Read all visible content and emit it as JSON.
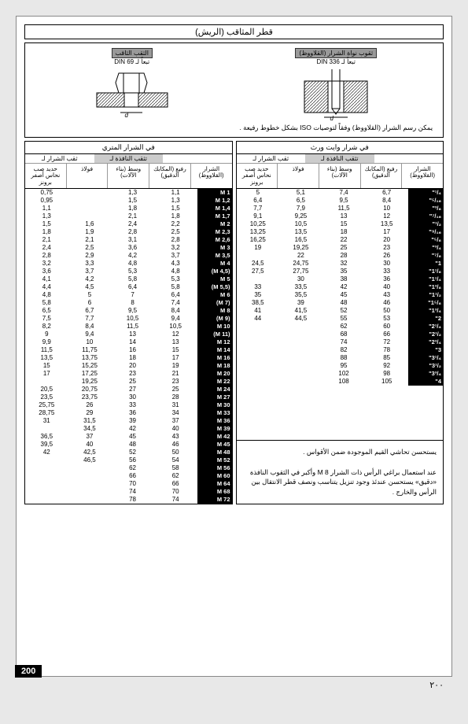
{
  "title": "قطر المثاقب (الريش)",
  "top": {
    "right_label": "ثقوب نواة الشرار (القلاووظ)",
    "right_din": "تبعاً لـ DIN 336",
    "left_label": "الثقب الثاقب",
    "left_din": "تبعاً لـ DIN 69",
    "note": "يمكن رسم الشرار (القلاووظ) وفقاً لتوصيات ISO بشكل خطوط رفيعة ."
  },
  "headers": {
    "left_title": "في الشرار المتري",
    "right_title": "في شرار وايت ورث",
    "group1": "تثقب النافذة لـ",
    "group2": "ثقب الشرار لـ",
    "col_tap": "الشرار (القلاووظ)",
    "col_fine": "رفيع (المكابك الدقيق)",
    "col_mid": "وسط (بناء الآلات)",
    "col_steel": "فولاذ",
    "col_brass": "حديد صب نحاس أصفر برونز"
  },
  "left_rows": [
    [
      "M 1",
      "1,1",
      "1,3",
      "",
      "0,75"
    ],
    [
      "M 1,2",
      "1,3",
      "1,5",
      "",
      "0,95"
    ],
    [
      "M 1,4",
      "1,5",
      "1,8",
      "",
      "1,1"
    ],
    [
      "M 1,7",
      "1,8",
      "2,1",
      "",
      "1,3"
    ],
    [
      "M 2",
      "2,2",
      "2,4",
      "1,6",
      "1,5"
    ],
    [
      "M 2,3",
      "2,5",
      "2,8",
      "1,9",
      "1,8"
    ],
    [
      "M 2,6",
      "2,8",
      "3,1",
      "2,1",
      "2,1"
    ],
    [
      "M 3",
      "3,2",
      "3,6",
      "2,5",
      "2,4"
    ],
    [
      "M 3,5",
      "3,7",
      "4,2",
      "2,9",
      "2,8"
    ],
    [
      "M 4",
      "4,3",
      "4,8",
      "3,3",
      "3,2"
    ],
    [
      "(M 4,5)",
      "4,8",
      "5,3",
      "3,7",
      "3,6"
    ],
    [
      "M 5",
      "5,3",
      "5,8",
      "4,2",
      "4,1"
    ],
    [
      "(M 5,5)",
      "5,8",
      "6,4",
      "4,5",
      "4,4"
    ],
    [
      "M 6",
      "6,4",
      "7",
      "5",
      "4,8"
    ],
    [
      "(M 7)",
      "7,4",
      "8",
      "6",
      "5,8"
    ],
    [
      "M 8",
      "8,4",
      "9,5",
      "6,7",
      "6,5"
    ],
    [
      "(M 9)",
      "9,4",
      "10,5",
      "7,7",
      "7,5"
    ],
    [
      "M 10",
      "10,5",
      "11,5",
      "8,4",
      "8,2"
    ],
    [
      "(M 11)",
      "12",
      "13",
      "9,4",
      "9"
    ],
    [
      "M 12",
      "13",
      "14",
      "10",
      "9,9"
    ],
    [
      "M 14",
      "15",
      "16",
      "11,75",
      "11,5"
    ],
    [
      "M 16",
      "17",
      "18",
      "13,75",
      "13,5"
    ],
    [
      "M 18",
      "19",
      "20",
      "15,25",
      "15"
    ],
    [
      "M 20",
      "21",
      "23",
      "17,25",
      "17"
    ],
    [
      "M 22",
      "23",
      "25",
      "19,25",
      ""
    ],
    [
      "M 24",
      "25",
      "27",
      "20,75",
      "20,5"
    ],
    [
      "M 27",
      "28",
      "30",
      "23,75",
      "23,5"
    ],
    [
      "M 30",
      "31",
      "33",
      "26",
      "25,75"
    ],
    [
      "M 33",
      "34",
      "36",
      "29",
      "28,75"
    ],
    [
      "M 36",
      "37",
      "39",
      "31,5",
      "31"
    ],
    [
      "M 39",
      "40",
      "42",
      "34,5",
      ""
    ],
    [
      "M 42",
      "43",
      "45",
      "37",
      "36,5"
    ],
    [
      "M 45",
      "46",
      "48",
      "40",
      "39,5"
    ],
    [
      "M 48",
      "50",
      "52",
      "42,5",
      "42"
    ],
    [
      "M 52",
      "54",
      "56",
      "46,5",
      ""
    ],
    [
      "M 56",
      "58",
      "62",
      "",
      ""
    ],
    [
      "M 60",
      "62",
      "66",
      "",
      ""
    ],
    [
      "M 64",
      "66",
      "70",
      "",
      ""
    ],
    [
      "M 68",
      "70",
      "74",
      "",
      ""
    ],
    [
      "M 72",
      "74",
      "78",
      "",
      ""
    ]
  ],
  "right_rows": [
    [
      "¹/₄\"",
      "6,7",
      "7,4",
      "5,1",
      "5"
    ],
    [
      "⁵/₁₆\"",
      "8,4",
      "9,5",
      "6,5",
      "6,4"
    ],
    [
      "³/₈\"",
      "10",
      "11,5",
      "7,9",
      "7,7"
    ],
    [
      "⁷/₁₆\"",
      "12",
      "13",
      "9,25",
      "9,1"
    ],
    [
      "¹/₂\"",
      "13,5",
      "15",
      "10,5",
      "10,25"
    ],
    [
      "⁹/₁₆\"",
      "17",
      "18",
      "13,5",
      "13,25"
    ],
    [
      "⁵/₈\"",
      "20",
      "22",
      "16,5",
      "16,25"
    ],
    [
      "³/₄\"",
      "23",
      "25",
      "19,25",
      "19"
    ],
    [
      "⁷/₈\"",
      "26",
      "28",
      "22",
      ""
    ],
    [
      "1\"",
      "30",
      "32",
      "24,75",
      "24,5"
    ],
    [
      "1¹/₈\"",
      "33",
      "35",
      "27,75",
      "27,5"
    ],
    [
      "1¹/₄\"",
      "36",
      "38",
      "30",
      ""
    ],
    [
      "1³/₈\"",
      "40",
      "42",
      "33,5",
      "33"
    ],
    [
      "1¹/₂\"",
      "43",
      "45",
      "35,5",
      "35"
    ],
    [
      "1⁵/₈\"",
      "46",
      "48",
      "39",
      "38,5"
    ],
    [
      "1³/₄\"",
      "50",
      "52",
      "41,5",
      "41"
    ],
    [
      "2\"",
      "53",
      "55",
      "44,5",
      "44"
    ],
    [
      "2¹/₄\"",
      "60",
      "62",
      "",
      ""
    ],
    [
      "2¹/₂\"",
      "66",
      "68",
      "",
      ""
    ],
    [
      "2³/₄\"",
      "72",
      "74",
      "",
      ""
    ],
    [
      "3\"",
      "78",
      "82",
      "",
      ""
    ],
    [
      "3¹/₄\"",
      "85",
      "88",
      "",
      ""
    ],
    [
      "3¹/₂\"",
      "92",
      "95",
      "",
      ""
    ],
    [
      "3³/₄\"",
      "98",
      "102",
      "",
      ""
    ],
    [
      "4\"",
      "105",
      "108",
      "",
      ""
    ]
  ],
  "notes": {
    "n1": "يستحسن تحاشي القيم الموجودة ضمن الأقواس .",
    "n2": "عند استعمال براغي الرأس ذات الشرار M 8 وأكبر في الثقوب النافذة «دقيق» يستحسن عندئذ وجود تنزيل يتناسب ونصف قطر الانتقال بين الرأس والخارج ."
  },
  "page_num": "200",
  "page_num_ar": "٢٠٠"
}
